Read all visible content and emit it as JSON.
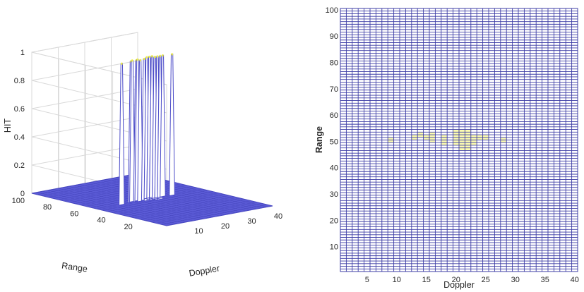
{
  "chart_data": [
    {
      "type": "surface",
      "xlabel": "Doppler",
      "ylabel": "Range",
      "zlabel": "HIT",
      "xlim": [
        0,
        40
      ],
      "ylim": [
        0,
        100
      ],
      "zlim": [
        0,
        1
      ],
      "xticks": [
        "10",
        "20",
        "30",
        "40"
      ],
      "yticks": [
        "20",
        "40",
        "60",
        "80",
        "100"
      ],
      "zticks": [
        "0",
        "0.2",
        "0.4",
        "0.6",
        "0.8",
        "1"
      ],
      "surface_color": "#5b5bd6",
      "peak_color": "#f5f542",
      "grid": true,
      "hits": [
        {
          "doppler": 9,
          "range": 51
        },
        {
          "doppler": 13,
          "range": 52
        },
        {
          "doppler": 14,
          "range": 53
        },
        {
          "doppler": 15,
          "range": 52
        },
        {
          "doppler": 16,
          "range": 51
        },
        {
          "doppler": 16,
          "range": 53
        },
        {
          "doppler": 18,
          "range": 50
        },
        {
          "doppler": 18,
          "range": 52
        },
        {
          "doppler": 20,
          "range": 50
        },
        {
          "doppler": 20,
          "range": 52
        },
        {
          "doppler": 20,
          "range": 54
        },
        {
          "doppler": 21,
          "range": 48
        },
        {
          "doppler": 21,
          "range": 50
        },
        {
          "doppler": 21,
          "range": 52
        },
        {
          "doppler": 21,
          "range": 54
        },
        {
          "doppler": 22,
          "range": 48
        },
        {
          "doppler": 22,
          "range": 50
        },
        {
          "doppler": 22,
          "range": 52
        },
        {
          "doppler": 22,
          "range": 54
        },
        {
          "doppler": 23,
          "range": 50
        },
        {
          "doppler": 23,
          "range": 52
        },
        {
          "doppler": 24,
          "range": 52
        },
        {
          "doppler": 25,
          "range": 52
        },
        {
          "doppler": 28,
          "range": 51
        }
      ]
    },
    {
      "type": "heatmap",
      "xlabel": "Doppler",
      "ylabel": "Range",
      "xlim": [
        1,
        41
      ],
      "ylim": [
        1,
        101
      ],
      "xticks": [
        "5",
        "10",
        "15",
        "20",
        "25",
        "30",
        "35",
        "40"
      ],
      "yticks": [
        "10",
        "20",
        "30",
        "40",
        "50",
        "60",
        "70",
        "80",
        "90",
        "100"
      ],
      "grid_color": "#3c3ca5",
      "background_color": "#ffffff",
      "hit_color": "#fdfdb0",
      "hits": [
        {
          "doppler": 9,
          "range": 51
        },
        {
          "doppler": 13,
          "range": 52
        },
        {
          "doppler": 14,
          "range": 53
        },
        {
          "doppler": 15,
          "range": 52
        },
        {
          "doppler": 16,
          "range": 51
        },
        {
          "doppler": 16,
          "range": 53
        },
        {
          "doppler": 18,
          "range": 50
        },
        {
          "doppler": 18,
          "range": 52
        },
        {
          "doppler": 20,
          "range": 50
        },
        {
          "doppler": 20,
          "range": 52
        },
        {
          "doppler": 20,
          "range": 54
        },
        {
          "doppler": 21,
          "range": 48
        },
        {
          "doppler": 21,
          "range": 50
        },
        {
          "doppler": 21,
          "range": 52
        },
        {
          "doppler": 21,
          "range": 54
        },
        {
          "doppler": 22,
          "range": 48
        },
        {
          "doppler": 22,
          "range": 50
        },
        {
          "doppler": 22,
          "range": 52
        },
        {
          "doppler": 22,
          "range": 54
        },
        {
          "doppler": 23,
          "range": 50
        },
        {
          "doppler": 23,
          "range": 52
        },
        {
          "doppler": 24,
          "range": 52
        },
        {
          "doppler": 25,
          "range": 52
        },
        {
          "doppler": 28,
          "range": 51
        }
      ]
    }
  ]
}
